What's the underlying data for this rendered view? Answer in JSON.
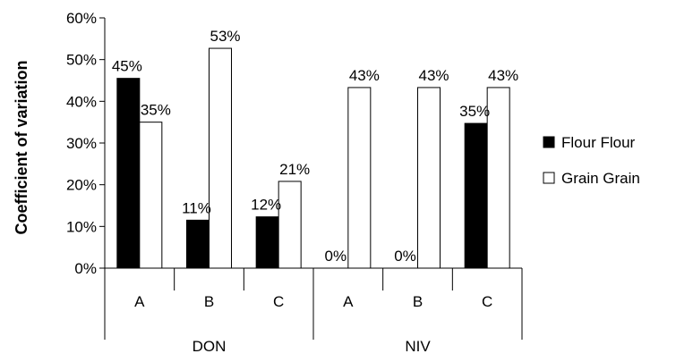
{
  "chart_data": {
    "type": "bar",
    "ylabel": "Coefficient of variation",
    "ylim": [
      0,
      60
    ],
    "yticks": [
      "0%",
      "10%",
      "20%",
      "30%",
      "40%",
      "50%",
      "60%"
    ],
    "groups": [
      {
        "label": "DON",
        "categories": [
          "A",
          "B",
          "C"
        ]
      },
      {
        "label": "NIV",
        "categories": [
          "A",
          "B",
          "C"
        ]
      }
    ],
    "series": [
      {
        "name": "Flour Flour",
        "color": "#000000",
        "values": [
          45.5,
          11.5,
          12.3,
          0,
          0,
          34.7
        ],
        "labels": [
          "45%",
          "11%",
          "12%",
          "0%",
          "0%",
          "35%"
        ]
      },
      {
        "name": "Grain Grain",
        "color": "#ffffff",
        "values": [
          35,
          52.7,
          20.8,
          43.3,
          43.3,
          43.3
        ],
        "labels": [
          "35%",
          "53%",
          "21%",
          "43%",
          "43%",
          "43%"
        ]
      }
    ],
    "legend_position": "right",
    "grid": false
  }
}
